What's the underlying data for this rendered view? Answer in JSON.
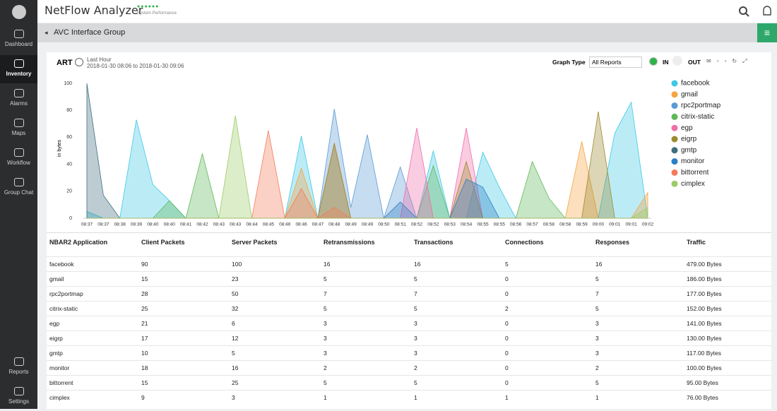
{
  "header": {
    "title": "NetFlow Analyzer",
    "subtitle": "System Performance"
  },
  "sidebar": [
    "Dashboard",
    "Inventory",
    "Alarms",
    "Maps",
    "Workflow",
    "Group Chat",
    "Reports",
    "Settings"
  ],
  "breadcrumb": "AVC Interface Group",
  "panel": {
    "title": "ART",
    "period": "Last Hour",
    "range": "2018-01-30 08:06 to 2018-01-30 09:06",
    "graph_type_label": "Graph Type",
    "graph_type": "All Reports",
    "in": "IN",
    "out": "OUT"
  },
  "chart_data": {
    "type": "area",
    "ylabel": "in bytes",
    "categories": [
      "08:37",
      "08:37",
      "08:38",
      "08:39",
      "08:40",
      "08:40",
      "08:41",
      "08:42",
      "08:43",
      "08:43",
      "08:44",
      "08:45",
      "08:46",
      "08:46",
      "08:47",
      "08:48",
      "08:49",
      "08:49",
      "08:50",
      "08:51",
      "08:52",
      "08:52",
      "08:53",
      "08:54",
      "08:55",
      "08:55",
      "08:56",
      "08:57",
      "08:58",
      "08:58",
      "08:59",
      "09:00",
      "09:01",
      "09:01",
      "09:02"
    ],
    "ylim": [
      0,
      100
    ],
    "yticks": [
      0,
      20,
      40,
      60,
      80,
      100
    ],
    "grid": false,
    "legend": "right",
    "series": [
      {
        "name": "facebook",
        "color": "#3cc8e6",
        "values": [
          5,
          0,
          0,
          73,
          25,
          13,
          0,
          0,
          0,
          0,
          0,
          0,
          0,
          61,
          0,
          0,
          0,
          0,
          0,
          0,
          0,
          50,
          0,
          0,
          49,
          23,
          0,
          0,
          0,
          0,
          0,
          0,
          63,
          86,
          0
        ]
      },
      {
        "name": "gmail",
        "color": "#f5a442",
        "values": [
          0,
          0,
          0,
          0,
          0,
          0,
          0,
          0,
          0,
          0,
          0,
          0,
          0,
          37,
          0,
          56,
          0,
          0,
          0,
          0,
          0,
          0,
          0,
          0,
          0,
          0,
          0,
          0,
          0,
          0,
          57,
          0,
          0,
          0,
          19
        ]
      },
      {
        "name": "rpc2portmap",
        "color": "#5b9bd5",
        "values": [
          0,
          0,
          0,
          0,
          0,
          0,
          0,
          0,
          0,
          0,
          0,
          0,
          0,
          0,
          0,
          81,
          8,
          62,
          0,
          38,
          0,
          0,
          0,
          0,
          0,
          0,
          0,
          0,
          0,
          0,
          0,
          0,
          0,
          0,
          0
        ]
      },
      {
        "name": "citrix-static",
        "color": "#5fb85a",
        "values": [
          0,
          0,
          0,
          0,
          0,
          13,
          0,
          48,
          0,
          0,
          0,
          0,
          0,
          0,
          0,
          0,
          0,
          0,
          0,
          0,
          0,
          39,
          0,
          0,
          0,
          0,
          0,
          42,
          15,
          0,
          0,
          0,
          0,
          0,
          0
        ]
      },
      {
        "name": "egp",
        "color": "#f06ea8",
        "values": [
          0,
          0,
          0,
          0,
          0,
          0,
          0,
          0,
          0,
          0,
          0,
          0,
          0,
          0,
          0,
          0,
          0,
          0,
          0,
          0,
          67,
          0,
          0,
          67,
          0,
          0,
          0,
          0,
          0,
          0,
          0,
          0,
          0,
          0,
          0
        ]
      },
      {
        "name": "eigrp",
        "color": "#9c8a2e",
        "values": [
          0,
          0,
          0,
          0,
          0,
          0,
          0,
          0,
          0,
          0,
          0,
          0,
          0,
          0,
          0,
          55,
          0,
          0,
          0,
          0,
          0,
          0,
          0,
          42,
          0,
          0,
          0,
          0,
          0,
          0,
          0,
          79,
          0,
          0,
          0
        ]
      },
      {
        "name": "gmtp",
        "color": "#3e6e7e",
        "values": [
          100,
          17,
          0,
          0,
          0,
          0,
          0,
          0,
          0,
          0,
          0,
          0,
          0,
          0,
          0,
          0,
          0,
          0,
          0,
          0,
          0,
          0,
          0,
          0,
          0,
          0,
          0,
          0,
          0,
          0,
          0,
          0,
          0,
          0,
          0
        ]
      },
      {
        "name": "monitor",
        "color": "#2a7fc4",
        "values": [
          0,
          0,
          0,
          0,
          0,
          0,
          0,
          0,
          0,
          0,
          0,
          0,
          0,
          0,
          0,
          0,
          0,
          0,
          0,
          12,
          0,
          0,
          0,
          29,
          23,
          0,
          0,
          0,
          0,
          0,
          0,
          0,
          0,
          0,
          0
        ]
      },
      {
        "name": "bittorrent",
        "color": "#f47b5a",
        "values": [
          0,
          0,
          0,
          0,
          0,
          0,
          0,
          0,
          0,
          0,
          0,
          65,
          0,
          22,
          0,
          8,
          0,
          0,
          0,
          0,
          0,
          0,
          0,
          0,
          0,
          0,
          0,
          0,
          0,
          0,
          0,
          0,
          0,
          0,
          0
        ]
      },
      {
        "name": "cimplex",
        "color": "#9ccc65",
        "values": [
          0,
          0,
          0,
          0,
          0,
          0,
          0,
          0,
          0,
          76,
          0,
          0,
          0,
          0,
          0,
          0,
          0,
          0,
          0,
          0,
          0,
          0,
          0,
          0,
          0,
          0,
          0,
          0,
          0,
          0,
          0,
          0,
          0,
          0,
          8
        ]
      }
    ]
  },
  "table": {
    "columns": [
      "NBAR2 Application",
      "Client Packets",
      "Server Packets",
      "Retransmissions",
      "Transactions",
      "Connections",
      "Responses",
      "Traffic"
    ],
    "rows": [
      [
        "facebook",
        90,
        100,
        16,
        16,
        5,
        16,
        "479.00 Bytes"
      ],
      [
        "gmail",
        15,
        23,
        5,
        5,
        0,
        5,
        "186.00 Bytes"
      ],
      [
        "rpc2portmap",
        28,
        50,
        7,
        7,
        0,
        7,
        "177.00 Bytes"
      ],
      [
        "citrix-static",
        25,
        32,
        5,
        5,
        2,
        5,
        "152.00 Bytes"
      ],
      [
        "egp",
        21,
        6,
        3,
        3,
        0,
        3,
        "141.00 Bytes"
      ],
      [
        "eigrp",
        17,
        12,
        3,
        3,
        0,
        3,
        "130.00 Bytes"
      ],
      [
        "gmtp",
        10,
        5,
        3,
        3,
        0,
        3,
        "117.00 Bytes"
      ],
      [
        "monitor",
        18,
        16,
        2,
        2,
        0,
        2,
        "100.00 Bytes"
      ],
      [
        "bittorrent",
        15,
        25,
        5,
        5,
        0,
        5,
        "95.00 Bytes"
      ],
      [
        "cimplex",
        9,
        3,
        1,
        1,
        1,
        1,
        "76.00 Bytes"
      ]
    ]
  }
}
